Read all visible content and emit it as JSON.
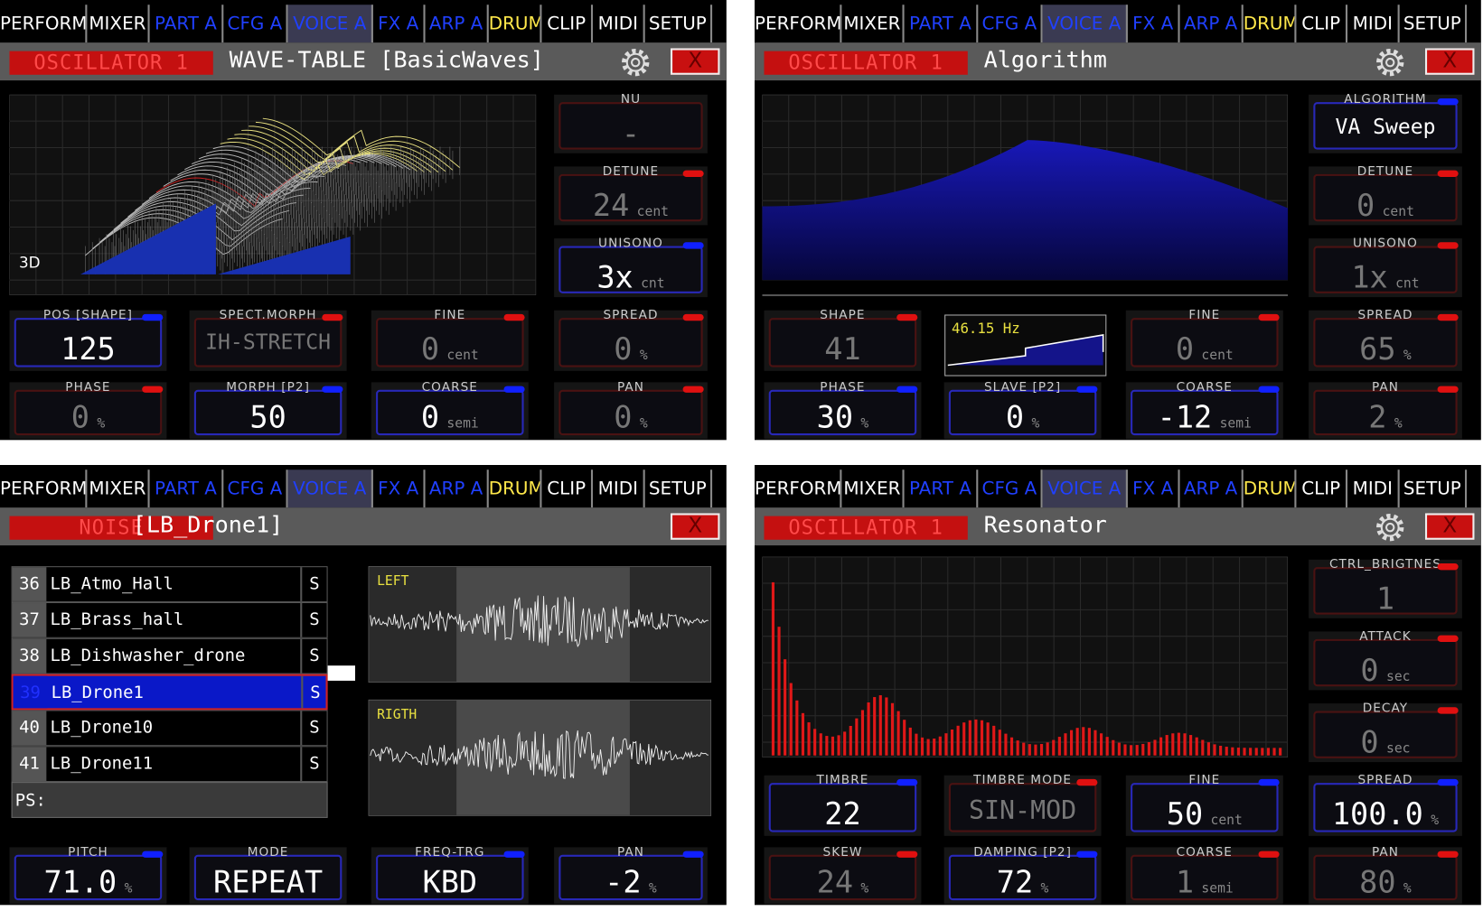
{
  "tabs": [
    "PERFORM",
    "MIXER",
    "PART A",
    "CFG A",
    "VOICE A",
    "FX A",
    "ARP A",
    "DRUM",
    "CLIP",
    "MIDI",
    "SETUP"
  ],
  "close": "X",
  "panels": [
    {
      "header_label": "OSCILLATOR 1",
      "title": "WAVE-TABLE [BasicWaves]",
      "graph_label": "3D",
      "controls": [
        {
          "label": "NU",
          "value": "-",
          "active": false
        },
        {
          "label": "DETUNE",
          "value": "24",
          "unit": "cent",
          "indicator": "#e01010",
          "active": false
        },
        {
          "label": "UNISONO",
          "value": "3x",
          "unit": "cnt",
          "indicator": "#1020ff",
          "active": true
        },
        {
          "label": "POS [SHAPE]",
          "value": "125",
          "indicator": "#1020ff",
          "active": true
        },
        {
          "label": "SPECT.MORPH",
          "value": "IH-STRETCH",
          "indicator": "#e01010",
          "active": false
        },
        {
          "label": "FINE",
          "value": "0",
          "unit": "cent",
          "indicator": "#e01010",
          "active": false
        },
        {
          "label": "SPREAD",
          "value": "0",
          "unit": "%",
          "indicator": "#e01010",
          "active": false
        },
        {
          "label": "PHASE",
          "value": "0",
          "unit": "%",
          "indicator": "#e01010",
          "active": false
        },
        {
          "label": "MORPH [P2]",
          "value": "50",
          "indicator": "#1020ff",
          "active": true
        },
        {
          "label": "COARSE",
          "value": "0",
          "unit": "semi",
          "indicator": "#1020ff",
          "active": true
        },
        {
          "label": "PAN",
          "value": "0",
          "unit": "%",
          "indicator": "#e01010",
          "active": false
        }
      ]
    },
    {
      "header_label": "OSCILLATOR 1",
      "title": "Algorithm",
      "freq_label": "46.15 Hz",
      "controls": [
        {
          "label": "ALGORITHM",
          "value": "VA Sweep",
          "indicator": "#1020ff",
          "active": true
        },
        {
          "label": "DETUNE",
          "value": "0",
          "unit": "cent",
          "indicator": "#e01010",
          "active": false
        },
        {
          "label": "UNISONO",
          "value": "1x",
          "unit": "cnt",
          "indicator": "#e01010",
          "active": false
        },
        {
          "label": "SHAPE",
          "value": "41",
          "indicator": "#e01010",
          "active": false
        },
        {
          "label": "FINE",
          "value": "0",
          "unit": "cent",
          "indicator": "#e01010",
          "active": false
        },
        {
          "label": "SPREAD",
          "value": "65",
          "unit": "%",
          "indicator": "#e01010",
          "active": false
        },
        {
          "label": "PHASE",
          "value": "30",
          "unit": "%",
          "indicator": "#1020ff",
          "active": true
        },
        {
          "label": "SLAVE [P2]",
          "value": "0",
          "unit": "%",
          "indicator": "#1020ff",
          "active": true
        },
        {
          "label": "COARSE",
          "value": "-12",
          "unit": "semi",
          "indicator": "#1020ff",
          "active": true
        },
        {
          "label": "PAN",
          "value": "2",
          "unit": "%",
          "indicator": "#e01010",
          "active": false
        }
      ]
    },
    {
      "header_label": "NOISE",
      "title": "[LB_Drone1]",
      "list": {
        "selected": 3,
        "rows": [
          {
            "num": "36",
            "name": "LB_Atmo_Hall",
            "flag": "S"
          },
          {
            "num": "37",
            "name": "LB_Brass_hall",
            "flag": "S"
          },
          {
            "num": "38",
            "name": "LB_Dishwasher_drone",
            "flag": "S"
          },
          {
            "num": "39",
            "name": "LB_Drone1",
            "flag": "S"
          },
          {
            "num": "40",
            "name": "LB_Drone10",
            "flag": "S"
          },
          {
            "num": "41",
            "name": "LB_Drone11",
            "flag": "S"
          }
        ],
        "footer": "PS:"
      },
      "wave_labels": [
        "LEFT",
        "RIGTH"
      ],
      "controls": [
        {
          "label": "PITCH",
          "value": "71.0",
          "unit": "%",
          "indicator": "#1020ff",
          "active": true
        },
        {
          "label": "MODE",
          "value": "REPEAT",
          "active": true
        },
        {
          "label": "FREQ-TRG",
          "value": "KBD",
          "indicator": "#1020ff",
          "active": true
        },
        {
          "label": "PAN",
          "value": "-2",
          "unit": "%",
          "indicator": "#1020ff",
          "active": true
        }
      ]
    },
    {
      "header_label": "OSCILLATOR 1",
      "title": "Resonator",
      "controls": [
        {
          "label": "CTRL_BRIGTNES",
          "value": "1",
          "indicator": "#e01010",
          "active": false
        },
        {
          "label": "ATTACK",
          "value": "0",
          "unit": "sec",
          "indicator": "#e01010",
          "active": false
        },
        {
          "label": "DECAY",
          "value": "0",
          "unit": "sec",
          "indicator": "#e01010",
          "active": false
        },
        {
          "label": "TIMBRE",
          "value": "22",
          "indicator": "#1020ff",
          "active": true
        },
        {
          "label": "TIMBRE MODE",
          "value": "SIN-MOD",
          "indicator": "#e01010",
          "active": false
        },
        {
          "label": "FINE",
          "value": "50",
          "unit": "cent",
          "indicator": "#1020ff",
          "active": true
        },
        {
          "label": "SPREAD",
          "value": "100.0",
          "unit": "%",
          "indicator": "#1020ff",
          "active": true
        },
        {
          "label": "SKEW",
          "value": "24",
          "unit": "%",
          "indicator": "#e01010",
          "active": false
        },
        {
          "label": "DAMPING [P2]",
          "value": "72",
          "unit": "%",
          "indicator": "#1020ff",
          "active": true
        },
        {
          "label": "COARSE",
          "value": "1",
          "unit": "semi",
          "indicator": "#e01010",
          "active": false
        },
        {
          "label": "PAN",
          "value": "80",
          "unit": "%",
          "indicator": "#e01010",
          "active": false
        }
      ]
    }
  ]
}
